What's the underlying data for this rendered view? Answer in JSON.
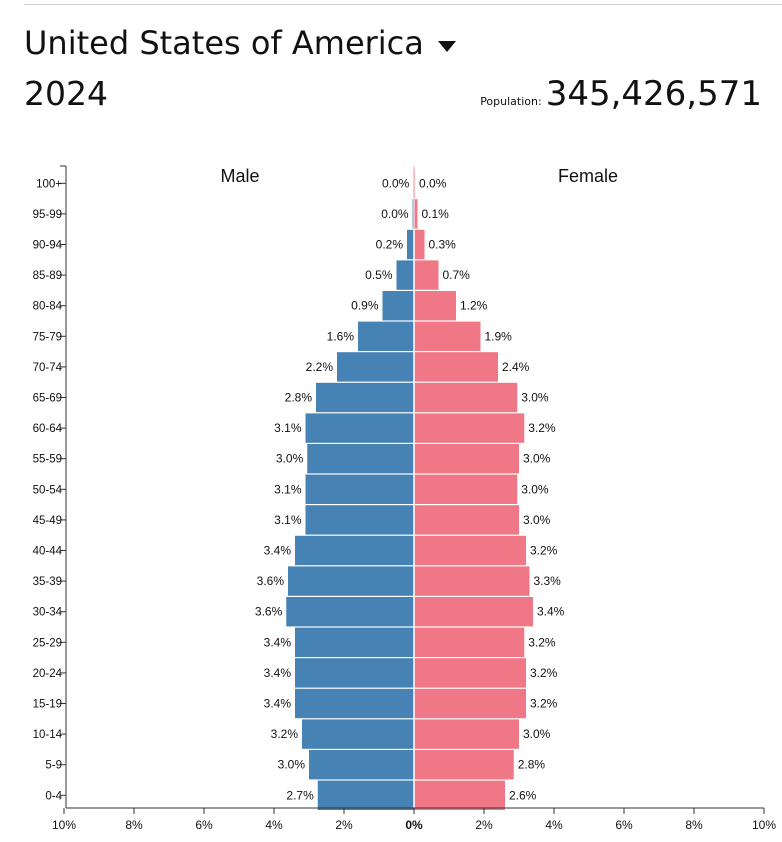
{
  "header": {
    "country": "United States of America",
    "year": "2024",
    "population_label": "Population:",
    "population_value": "345,426,571"
  },
  "colors": {
    "male": "#4682b4",
    "female": "#f07786",
    "axis": "#333333",
    "separator": "#ffffff"
  },
  "chart_data": {
    "type": "bar",
    "orientation": "horizontal-butterfly",
    "title": "United States of America 2024",
    "legend": [
      "Male",
      "Female"
    ],
    "categories": [
      "100+",
      "95-99",
      "90-94",
      "85-89",
      "80-84",
      "75-79",
      "70-74",
      "65-69",
      "60-64",
      "55-59",
      "50-54",
      "45-49",
      "40-44",
      "35-39",
      "30-34",
      "25-29",
      "20-24",
      "15-19",
      "10-14",
      "5-9",
      "0-4"
    ],
    "series": [
      {
        "name": "Male",
        "values": [
          0.02,
          0.04,
          0.2,
          0.5,
          0.9,
          1.6,
          2.2,
          2.8,
          3.1,
          3.05,
          3.1,
          3.1,
          3.4,
          3.6,
          3.65,
          3.4,
          3.4,
          3.4,
          3.2,
          3.0,
          2.75
        ],
        "labels": [
          "0.0%",
          "0.0%",
          "0.2%",
          "0.5%",
          "0.9%",
          "1.6%",
          "2.2%",
          "2.8%",
          "3.1%",
          "3.0%",
          "3.1%",
          "3.1%",
          "3.4%",
          "3.6%",
          "3.6%",
          "3.4%",
          "3.4%",
          "3.4%",
          "3.2%",
          "3.0%",
          "2.7%"
        ]
      },
      {
        "name": "Female",
        "values": [
          0.03,
          0.1,
          0.3,
          0.7,
          1.2,
          1.9,
          2.4,
          2.95,
          3.15,
          3.0,
          2.95,
          3.0,
          3.2,
          3.3,
          3.4,
          3.15,
          3.2,
          3.2,
          3.0,
          2.85,
          2.6
        ],
        "labels": [
          "0.0%",
          "0.1%",
          "0.3%",
          "0.7%",
          "1.2%",
          "1.9%",
          "2.4%",
          "3.0%",
          "3.2%",
          "3.0%",
          "3.0%",
          "3.0%",
          "3.2%",
          "3.3%",
          "3.4%",
          "3.2%",
          "3.2%",
          "3.2%",
          "3.0%",
          "2.8%",
          "2.6%"
        ]
      }
    ],
    "xlim": [
      -10,
      10
    ],
    "xticks": [
      -10,
      -8,
      -6,
      -4,
      -2,
      0,
      2,
      4,
      6,
      8,
      10
    ],
    "xtick_labels": [
      "10%",
      "8%",
      "6%",
      "4%",
      "2%",
      "0%",
      "2%",
      "4%",
      "6%",
      "8%",
      "10%"
    ],
    "xlabel": "",
    "ylabel": ""
  }
}
